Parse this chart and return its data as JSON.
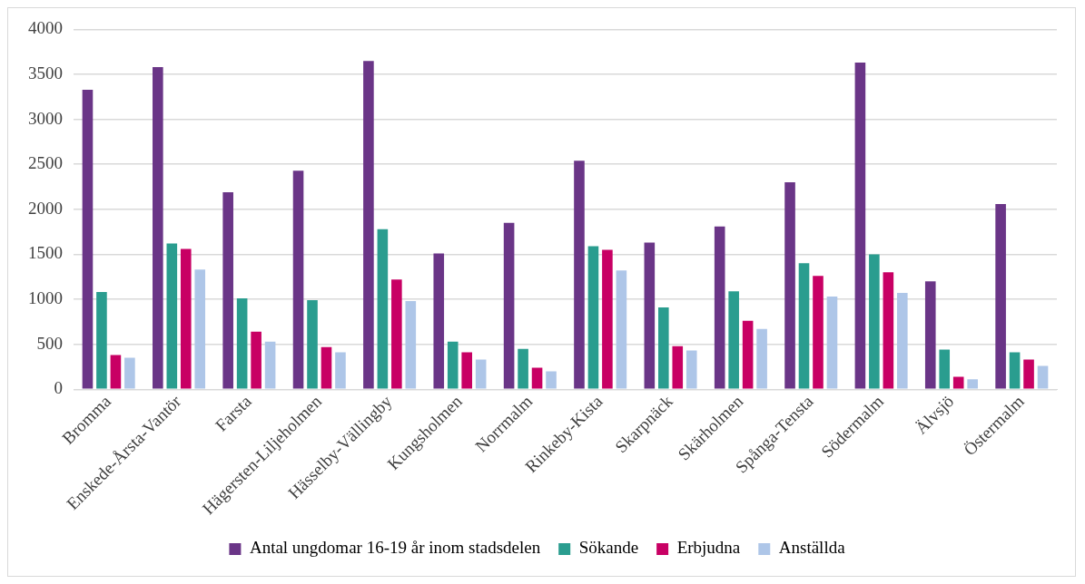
{
  "chart_data": {
    "type": "bar",
    "categories": [
      "Bromma",
      "Enskede-Årsta-Vantör",
      "Farsta",
      "Hägersten-Liljeholmen",
      "Hässelby-Vällingby",
      "Kungsholmen",
      "Norrmalm",
      "Rinkeby-Kista",
      "Skarpnäck",
      "Skärholmen",
      "Spånga-Tensta",
      "Södermalm",
      "Älvsjö",
      "Östermalm"
    ],
    "series": [
      {
        "name": "Antal ungdomar 16-19 år inom stadsdelen",
        "color": "#6a3587",
        "values": [
          3330,
          3580,
          2190,
          2430,
          3650,
          1510,
          1850,
          2540,
          1630,
          1810,
          2300,
          3630,
          1200,
          2060
        ]
      },
      {
        "name": "Sökande",
        "color": "#2a9d8f",
        "values": [
          1080,
          1620,
          1010,
          990,
          1780,
          530,
          450,
          1590,
          910,
          1090,
          1400,
          1500,
          440,
          410
        ]
      },
      {
        "name": "Erbjudna",
        "color": "#c80064",
        "values": [
          380,
          1560,
          640,
          470,
          1220,
          410,
          240,
          1550,
          480,
          760,
          1260,
          1300,
          140,
          330
        ]
      },
      {
        "name": "Anställda",
        "color": "#aec6e8",
        "values": [
          350,
          1330,
          530,
          410,
          980,
          330,
          200,
          1320,
          430,
          670,
          1030,
          1070,
          110,
          260
        ]
      }
    ],
    "ylim": [
      0,
      4000
    ],
    "yticks": [
      0,
      500,
      1000,
      1500,
      2000,
      2500,
      3000,
      3500,
      4000
    ],
    "grid": "y",
    "legend": "bottom"
  }
}
